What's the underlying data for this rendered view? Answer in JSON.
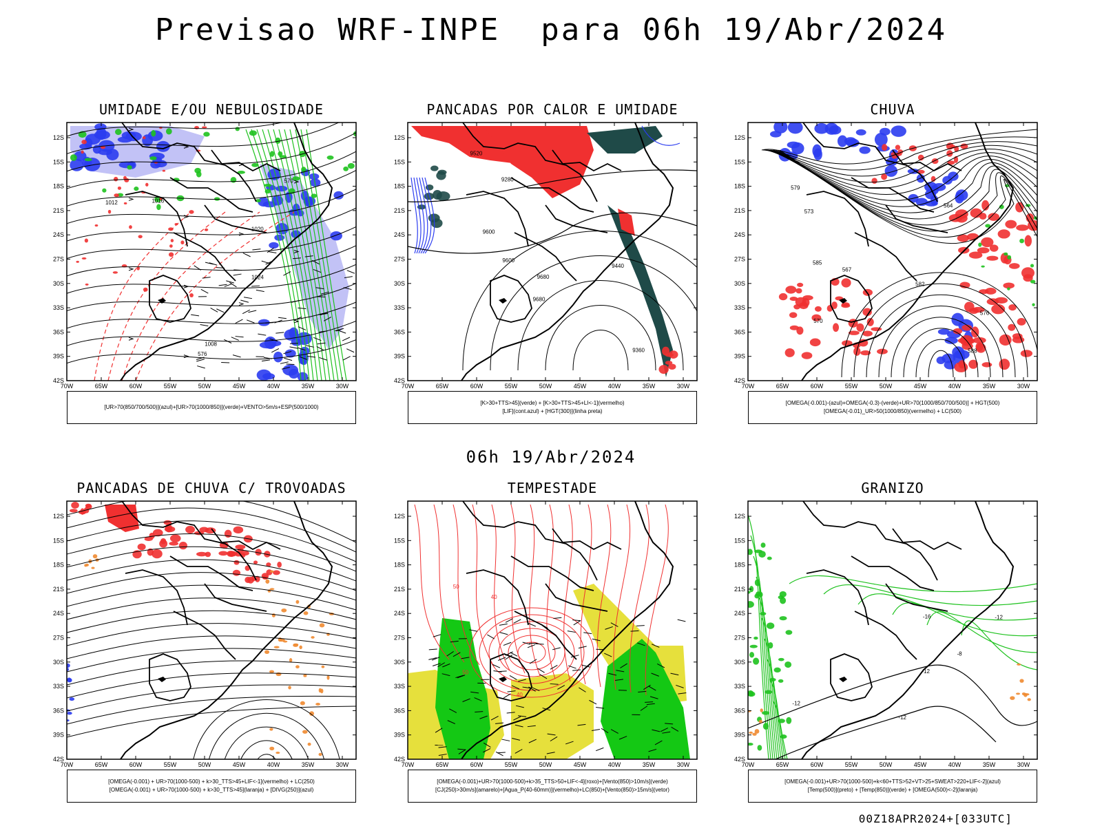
{
  "title": "Previsao WRF-INPE  para 06h 19/Abr/2024",
  "subtitle": "06h 19/Abr/2024",
  "footer": "00Z18APR2024+[033UTC]",
  "map_axes": {
    "lat_labels": [
      "12S",
      "15S",
      "18S",
      "21S",
      "24S",
      "27S",
      "30S",
      "33S",
      "36S",
      "39S",
      "42S"
    ],
    "lon_labels": [
      "70W",
      "65W",
      "60W",
      "55W",
      "50W",
      "45W",
      "40W",
      "35W",
      "30W"
    ]
  },
  "colors": {
    "blue": "#2b3cf0",
    "lightblue": "#9a9af0",
    "green": "#1ec21e",
    "red": "#f03030",
    "orange": "#f08a30",
    "yellow": "#e6e03c",
    "darkgreen": "#1f4a48",
    "brightgreen": "#14c814"
  },
  "panels": [
    {
      "title": "UMIDADE E/OU NEBULOSIDADE",
      "legend": [
        "[UR>70(850/700/500)](azul)+[UR>70(1000/850)](verde)+VENTO>5m/s+ESP(500/1000)"
      ],
      "contour_labels": [
        "1012",
        "1016",
        "1020",
        "1008",
        "570",
        "576",
        "1024"
      ]
    },
    {
      "title": "PANCADAS POR CALOR E UMIDADE",
      "legend": [
        "[K>30+TTS>45](verde) + [K>30+TTS>45+LI<-1](vermelho)",
        "[LIF](cont.azul) + [HGT(300)](linha preta)"
      ],
      "contour_labels": [
        "9680",
        "9600",
        "9520",
        "9440",
        "9360",
        "9280",
        "9680",
        "9600"
      ]
    },
    {
      "title": "CHUVA",
      "legend": [
        "[OMEGA(-0.001)-(azul)+OMEGA(-0.3)-(verde)+UR>70(1000/850/700/500)] + HGT(500)",
        "[OMEGA(-0.01)_UR>50(1000/850)(vermelho) + LC(500)"
      ],
      "contour_labels": [
        "588",
        "585",
        "582",
        "579",
        "576",
        "573",
        "570",
        "567",
        "564"
      ]
    },
    {
      "title": "PANCADAS DE CHUVA C/ TROVOADAS",
      "legend": [
        "[OMEGA(-0.001) + UR>70(1000-500) + k>30_TTS>45+LIF<-1](vermelho) + LC(250)",
        "[OMEGA(-0.001) + UR>70(1000-500) + k>30_TTS>45](laranja) + [DIVG(250)](azul)"
      ],
      "contour_labels": []
    },
    {
      "title": "TEMPESTADE",
      "legend": [
        "[OMEGA(-0.001)+UR>70(1000-500)+k>35_TTS>50+LIF<-4](roxo)+[Vento(850)>10m/s](verde)",
        "[CJ(250)>30m/s](amarelo)+[Agua_P(40-60mm)](vermelho)+LC(850)+[Vento(850)>15m/s](vetor)"
      ],
      "contour_labels": [
        "40",
        "50",
        "50",
        "40"
      ]
    },
    {
      "title": "GRANIZO",
      "legend": [
        "[OMEGA(-0.001)+UR>70(1000-500)+k<60+TTS>52+VT>25+SWEAT>220+LIF<-2](azul)",
        "[Temp(500)](preto) + [Temp(850)](verde) + [OMEGA(500)<-2](laranja)"
      ],
      "contour_labels": [
        "-12",
        "-12",
        "-12",
        "-16",
        "-12",
        "-8"
      ]
    }
  ]
}
